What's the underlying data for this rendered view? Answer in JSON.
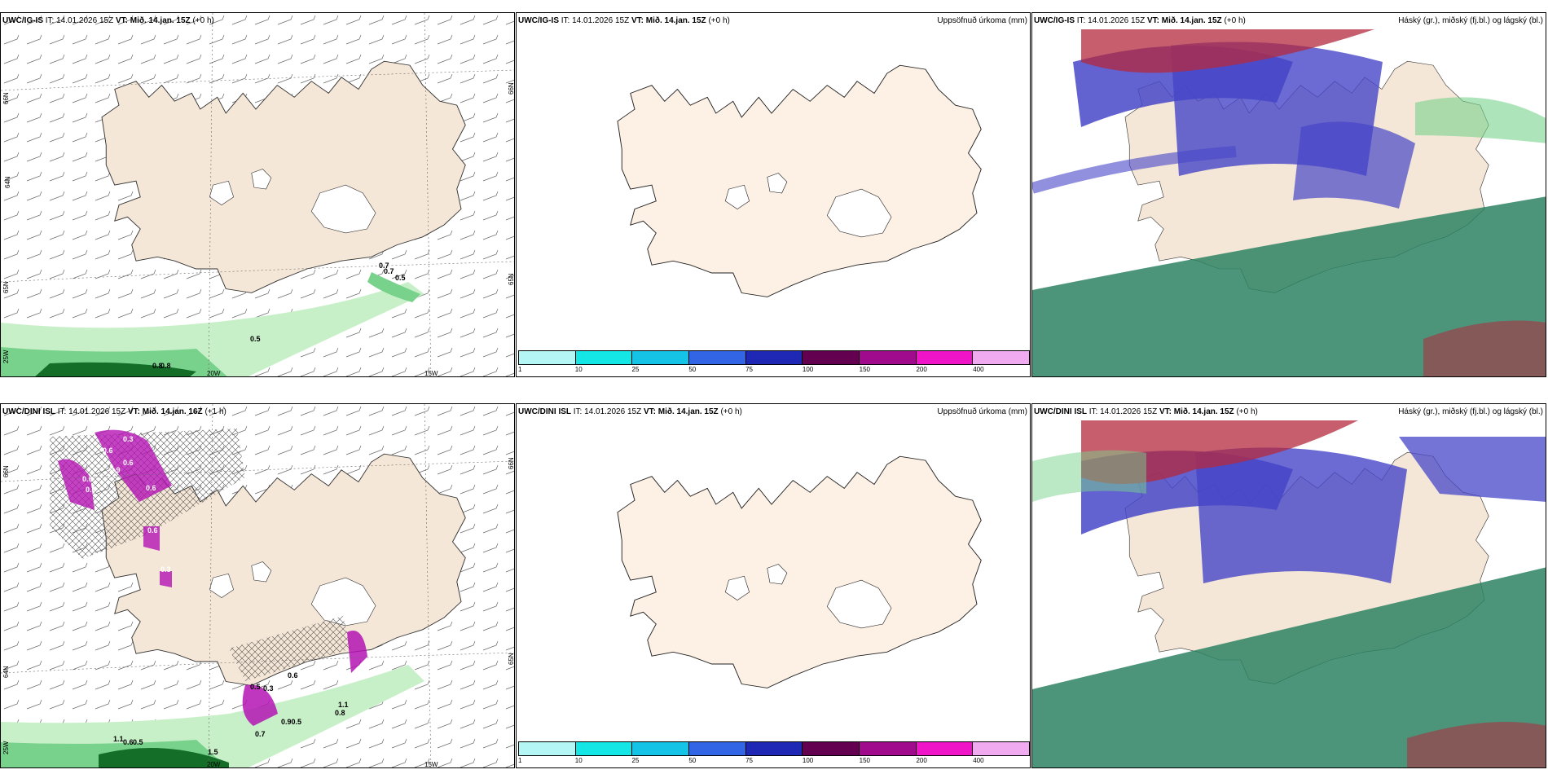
{
  "panels": [
    {
      "model": "UWC/IG-IS",
      "it": "IT: 14.01.2026 15Z",
      "vt_label": "VT:",
      "vt": "Mið. 14.jan. 15Z",
      "lead": "(+0 h)",
      "title": "",
      "lon_labels": [
        "20W",
        "15W",
        "25W"
      ],
      "lat_labels": [
        "66N",
        "65N",
        "64N",
        "66N",
        "65N"
      ],
      "contour_labels": [
        "0.7",
        "0.7",
        "0.5",
        "0.5",
        "0.8",
        "0.8"
      ]
    },
    {
      "model": "UWC/IG-IS",
      "it": "IT: 14.01.2026 15Z",
      "vt_label": "VT:",
      "vt": "Mið. 14.jan. 15Z",
      "lead": "(+0 h)",
      "title": "Uppsöfnuð úrkoma (mm)"
    },
    {
      "model": "UWC/IG-IS",
      "it": "IT: 14.01.2026 15Z",
      "vt_label": "VT:",
      "vt": "Mið. 14.jan. 15Z",
      "lead": "(+0 h)",
      "title": "Háský (gr.), miðský (fj.bl.) og lágský (bl.)"
    },
    {
      "model": "UWC/DINI ISL",
      "it": "IT: 14.01.2026 15Z",
      "vt_label": "VT:",
      "vt": "Mið. 14.jan. 16Z",
      "lead": "(+1 h)",
      "title": "",
      "lon_labels": [
        "20W",
        "15W",
        "25W"
      ],
      "lat_labels": [
        "66N",
        "64N",
        "66N",
        "65N"
      ],
      "contour_labels": [
        "0.3",
        "0.6",
        "0.6",
        "0.9",
        "0.6",
        "0.6",
        "0.6",
        "0.6",
        "0.3",
        "0.5",
        "0.3",
        "0.6",
        "0.90.5",
        "0.7",
        "1.1",
        "0.8",
        "1.1",
        "0.6",
        "0.5",
        "1.5"
      ]
    },
    {
      "model": "UWC/DINI ISL",
      "it": "IT: 14.01.2026 15Z",
      "vt_label": "VT:",
      "vt": "Mið. 14.jan. 15Z",
      "lead": "(+0 h)",
      "title": "Uppsöfnuð úrkoma (mm)"
    },
    {
      "model": "UWC/DINI ISL",
      "it": "IT: 14.01.2026 15Z",
      "vt_label": "VT:",
      "vt": "Mið. 14.jan. 15Z",
      "lead": "(+0 h)",
      "title": "Háský (gr.), miðský (fj.bl.) og lágský (bl.)"
    }
  ],
  "precip_colorbar": {
    "ticks": [
      "1",
      "10",
      "25",
      "50",
      "75",
      "100",
      "150",
      "200",
      "400"
    ],
    "colors": [
      "#b4f5f5",
      "#14e6e6",
      "#14c3e6",
      "#3264e6",
      "#1e28b4",
      "#640050",
      "#a00a8c",
      "#f014c8",
      "#f0aaf0"
    ]
  },
  "colors": {
    "land": "#f5e7d7",
    "green_light": "#c8f0c8",
    "green_mid": "#78d28c",
    "green_dark": "#146e28",
    "purple": "#b414b4",
    "pink": "#f07df0",
    "high_cloud": "#2d8264",
    "mid_cloud": "#b4283c",
    "low_cloud": "#4646c8"
  }
}
